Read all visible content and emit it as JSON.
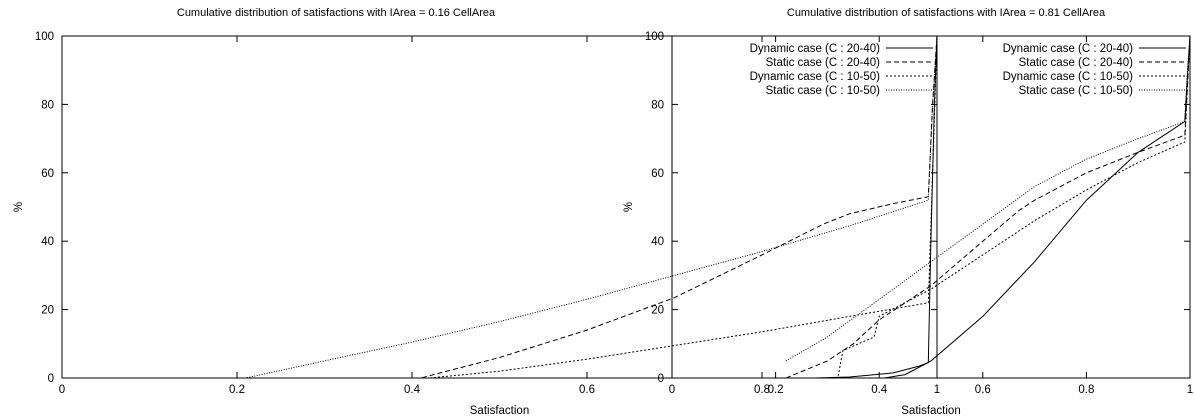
{
  "chart_data": [
    {
      "type": "line",
      "title": "Cumulative distribution of satisfactions with IArea = 0.16 CellArea",
      "xlabel": "Satisfaction",
      "ylabel": "%",
      "xlim": [
        0,
        1
      ],
      "ylim": [
        0,
        100
      ],
      "x_ticks": [
        "0",
        "0.2",
        "0.4",
        "0.6",
        "0.8",
        "1"
      ],
      "y_ticks": [
        "0",
        "20",
        "40",
        "60",
        "80",
        "100"
      ],
      "grid": false,
      "legend_position": "top-right",
      "series": [
        {
          "name": "Dynamic case (C : 20-40)",
          "style": "solid",
          "points": [
            [
              0.0,
              0
            ],
            [
              0.86,
              0
            ],
            [
              0.9,
              0.3
            ],
            [
              0.95,
              1.5
            ],
            [
              0.98,
              3.5
            ],
            [
              0.99,
              4.5
            ],
            [
              0.993,
              40
            ],
            [
              0.997,
              80
            ],
            [
              1.0,
              100
            ]
          ]
        },
        {
          "name": "Static case (C : 20-40)",
          "style": "dashed",
          "points": [
            [
              0.0,
              0
            ],
            [
              0.41,
              0
            ],
            [
              0.5,
              6
            ],
            [
              0.6,
              14
            ],
            [
              0.7,
              23.5
            ],
            [
              0.8,
              36
            ],
            [
              0.87,
              45
            ],
            [
              0.9,
              48
            ],
            [
              0.95,
              51
            ],
            [
              0.99,
              53
            ],
            [
              0.995,
              80
            ],
            [
              1.0,
              100
            ]
          ]
        },
        {
          "name": "Dynamic case (C : 10-50)",
          "style": "dotted",
          "points": [
            [
              0.0,
              0
            ],
            [
              0.42,
              0
            ],
            [
              0.5,
              2
            ],
            [
              0.6,
              5.5
            ],
            [
              0.7,
              9.5
            ],
            [
              0.8,
              13.5
            ],
            [
              0.9,
              18
            ],
            [
              0.99,
              22
            ],
            [
              0.995,
              60
            ],
            [
              1.0,
              100
            ]
          ]
        },
        {
          "name": "Static case (C : 10-50)",
          "style": "fine-dotted",
          "points": [
            [
              0.0,
              0
            ],
            [
              0.21,
              0
            ],
            [
              0.3,
              5
            ],
            [
              0.4,
              10.5
            ],
            [
              0.5,
              16.5
            ],
            [
              0.6,
              23
            ],
            [
              0.7,
              30
            ],
            [
              0.8,
              37
            ],
            [
              0.9,
              44.5
            ],
            [
              0.99,
              52
            ],
            [
              0.995,
              80
            ],
            [
              1.0,
              100
            ]
          ]
        }
      ]
    },
    {
      "type": "line",
      "title": "Cumulative distribution of satisfactions with IArea = 0.81 CellArea",
      "xlabel": "Satisfaction",
      "ylabel": "%",
      "xlim": [
        0,
        1
      ],
      "ylim": [
        0,
        100
      ],
      "x_ticks": [
        "0",
        "0.2",
        "0.4",
        "0.6",
        "0.8",
        "1"
      ],
      "y_ticks": [
        "0",
        "20",
        "40",
        "60",
        "80",
        "100"
      ],
      "grid": false,
      "legend_position": "top-right",
      "series": [
        {
          "name": "Dynamic case (C : 20-40)",
          "style": "solid",
          "points": [
            [
              0.0,
              0
            ],
            [
              0.41,
              0
            ],
            [
              0.45,
              1
            ],
            [
              0.5,
              5
            ],
            [
              0.6,
              18
            ],
            [
              0.7,
              34
            ],
            [
              0.8,
              52
            ],
            [
              0.9,
              66
            ],
            [
              0.99,
              75
            ],
            [
              0.995,
              88
            ],
            [
              1.0,
              100
            ]
          ]
        },
        {
          "name": "Static case (C : 20-40)",
          "style": "dashed",
          "points": [
            [
              0.22,
              0
            ],
            [
              0.3,
              5
            ],
            [
              0.35,
              10
            ],
            [
              0.4,
              17
            ],
            [
              0.5,
              27
            ],
            [
              0.6,
              40
            ],
            [
              0.67,
              49
            ],
            [
              0.7,
              52
            ],
            [
              0.8,
              60
            ],
            [
              0.9,
              66
            ],
            [
              0.99,
              71
            ],
            [
              0.995,
              85
            ],
            [
              1.0,
              100
            ]
          ]
        },
        {
          "name": "Dynamic case (C : 10-50)",
          "style": "dotted",
          "points": [
            [
              0.0,
              0
            ],
            [
              0.32,
              0
            ],
            [
              0.33,
              8
            ],
            [
              0.39,
              12
            ],
            [
              0.4,
              18
            ],
            [
              0.5,
              26
            ],
            [
              0.6,
              36
            ],
            [
              0.7,
              46
            ],
            [
              0.8,
              55
            ],
            [
              0.9,
              63
            ],
            [
              0.99,
              69
            ],
            [
              0.995,
              85
            ],
            [
              1.0,
              100
            ]
          ]
        },
        {
          "name": "Static case (C : 10-50)",
          "style": "fine-dotted",
          "points": [
            [
              0.22,
              5
            ],
            [
              0.3,
              12
            ],
            [
              0.4,
              23
            ],
            [
              0.5,
              34
            ],
            [
              0.6,
              45
            ],
            [
              0.7,
              56
            ],
            [
              0.8,
              64
            ],
            [
              0.9,
              70
            ],
            [
              0.99,
              75
            ],
            [
              0.995,
              90
            ],
            [
              1.0,
              100
            ]
          ]
        }
      ]
    }
  ]
}
